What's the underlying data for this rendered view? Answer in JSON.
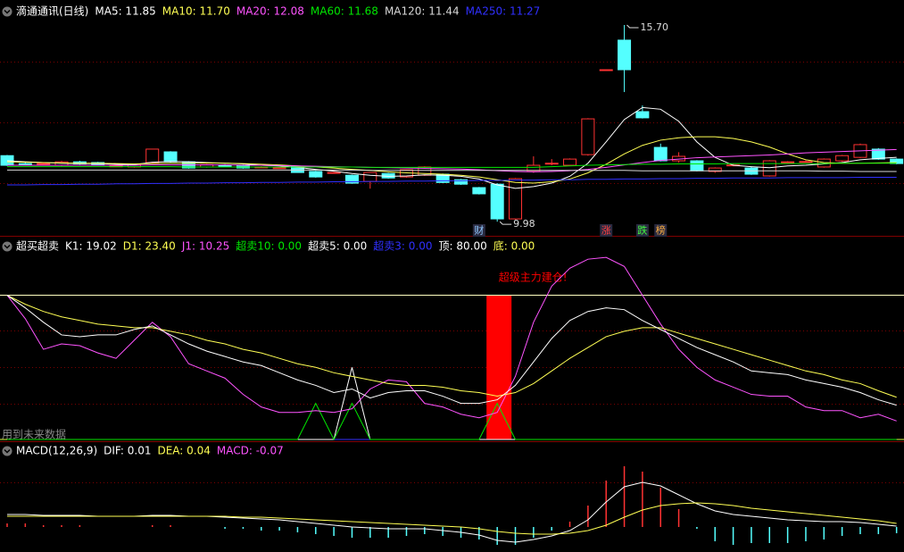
{
  "chart_data": [
    {
      "type": "candlestick",
      "title": "滴通通讯(日线)",
      "ylim": [
        9.62,
        16.22
      ],
      "up_color": "#ff3232",
      "down_color": "#54ffff",
      "open": [
        11.9,
        11.67,
        11.66,
        11.62,
        11.72,
        11.7,
        11.59,
        11.57,
        11.7,
        12.01,
        11.72,
        11.57,
        11.62,
        11.62,
        11.56,
        11.54,
        11.59,
        11.44,
        11.4,
        11.33,
        11.15,
        11.38,
        11.28,
        11.33,
        11.36,
        11.2,
        10.97,
        11.07,
        10.06,
        11.44,
        11.66,
        11.62,
        11.93,
        14.4,
        15.26,
        13.18,
        12.14,
        11.75,
        11.75,
        11.44,
        11.62,
        11.54,
        11.31,
        11.7,
        11.72,
        11.57,
        11.75,
        11.85,
        12.09,
        11.8
      ],
      "high": [
        11.92,
        11.7,
        11.69,
        11.75,
        11.75,
        11.72,
        11.62,
        11.66,
        12.1,
        12.03,
        11.74,
        11.66,
        11.65,
        11.64,
        11.59,
        11.57,
        11.6,
        11.46,
        11.43,
        11.35,
        11.42,
        11.4,
        11.5,
        11.59,
        11.38,
        11.22,
        10.99,
        11.1,
        11.25,
        11.88,
        11.8,
        11.82,
        12.99,
        14.4,
        15.7,
        13.36,
        12.25,
        12.0,
        11.77,
        11.56,
        11.66,
        11.58,
        11.77,
        11.74,
        11.76,
        11.82,
        11.92,
        12.25,
        12.12,
        11.82
      ],
      "low": [
        11.6,
        11.64,
        11.63,
        11.6,
        11.64,
        11.62,
        11.57,
        11.55,
        11.68,
        11.7,
        11.52,
        11.55,
        11.58,
        11.52,
        11.54,
        11.52,
        11.4,
        11.26,
        11.38,
        11.08,
        10.94,
        11.23,
        11.26,
        11.31,
        11.1,
        11.05,
        10.77,
        9.98,
        10.04,
        11.4,
        11.62,
        11.6,
        11.9,
        14.4,
        13.75,
        12.98,
        11.73,
        11.7,
        11.44,
        11.4,
        11.6,
        11.34,
        11.29,
        11.68,
        11.7,
        11.55,
        11.72,
        11.83,
        11.78,
        11.65
      ],
      "close": [
        11.62,
        11.66,
        11.67,
        11.72,
        11.66,
        11.63,
        11.6,
        11.64,
        12.09,
        11.72,
        11.54,
        11.64,
        11.61,
        11.54,
        11.57,
        11.55,
        11.41,
        11.28,
        11.41,
        11.1,
        11.41,
        11.25,
        11.49,
        11.57,
        11.12,
        11.07,
        10.79,
        10.06,
        11.23,
        11.62,
        11.68,
        11.8,
        12.97,
        14.4,
        14.4,
        13.0,
        11.75,
        11.88,
        11.46,
        11.54,
        11.63,
        11.36,
        11.75,
        11.72,
        11.73,
        11.8,
        11.9,
        12.22,
        11.8,
        11.67
      ],
      "series": [
        {
          "name": "MA5: 11.85",
          "color": "#ffffff",
          "values": [
            11.75,
            11.72,
            11.7,
            11.68,
            11.67,
            11.67,
            11.65,
            11.64,
            11.71,
            11.73,
            11.72,
            11.7,
            11.68,
            11.66,
            11.62,
            11.6,
            11.56,
            11.5,
            11.45,
            11.38,
            11.33,
            11.3,
            11.31,
            11.34,
            11.33,
            11.3,
            11.22,
            11.05,
            10.95,
            11.0,
            11.1,
            11.3,
            11.68,
            12.3,
            12.95,
            13.3,
            13.25,
            12.9,
            12.3,
            11.85,
            11.62,
            11.58,
            11.55,
            11.6,
            11.62,
            11.66,
            11.7,
            11.78,
            11.82,
            11.85
          ]
        },
        {
          "name": "MA10: 11.70",
          "color": "#ffff54",
          "values": [
            11.72,
            11.71,
            11.7,
            11.69,
            11.68,
            11.68,
            11.67,
            11.66,
            11.67,
            11.68,
            11.68,
            11.69,
            11.68,
            11.67,
            11.65,
            11.63,
            11.6,
            11.57,
            11.54,
            11.5,
            11.47,
            11.43,
            11.4,
            11.38,
            11.36,
            11.33,
            11.28,
            11.2,
            11.12,
            11.1,
            11.14,
            11.22,
            11.4,
            11.65,
            11.95,
            12.2,
            12.35,
            12.42,
            12.45,
            12.45,
            12.4,
            12.3,
            12.15,
            11.95,
            11.78,
            11.7,
            11.68,
            11.68,
            11.69,
            11.7
          ]
        },
        {
          "name": "MA20: 12.08",
          "color": "#ff54ff",
          "values": [
            11.62,
            11.62,
            11.62,
            11.62,
            11.62,
            11.62,
            11.62,
            11.62,
            11.63,
            11.63,
            11.63,
            11.63,
            11.63,
            11.62,
            11.62,
            11.61,
            11.6,
            11.59,
            11.58,
            11.57,
            11.56,
            11.55,
            11.54,
            11.53,
            11.52,
            11.51,
            11.49,
            11.46,
            11.44,
            11.43,
            11.44,
            11.46,
            11.5,
            11.56,
            11.63,
            11.7,
            11.76,
            11.8,
            11.84,
            11.86,
            11.88,
            11.9,
            11.92,
            11.95,
            11.98,
            12.0,
            12.02,
            12.04,
            12.06,
            12.08
          ]
        },
        {
          "name": "MA60: 11.68",
          "color": "#00e600",
          "values": [
            11.58,
            11.58,
            11.58,
            11.58,
            11.58,
            11.58,
            11.58,
            11.58,
            11.58,
            11.58,
            11.57,
            11.57,
            11.57,
            11.57,
            11.57,
            11.57,
            11.57,
            11.57,
            11.57,
            11.57,
            11.56,
            11.56,
            11.56,
            11.56,
            11.56,
            11.56,
            11.56,
            11.56,
            11.56,
            11.56,
            11.58,
            11.6,
            11.62,
            11.63,
            11.64,
            11.65,
            11.65,
            11.66,
            11.66,
            11.66,
            11.67,
            11.67,
            11.67,
            11.67,
            11.67,
            11.67,
            11.68,
            11.68,
            11.68,
            11.68
          ]
        },
        {
          "name": "MA120: 11.44",
          "color": "#d8d8d8",
          "values": [
            11.48,
            11.48,
            11.48,
            11.48,
            11.48,
            11.48,
            11.48,
            11.48,
            11.48,
            11.48,
            11.48,
            11.48,
            11.48,
            11.48,
            11.48,
            11.48,
            11.48,
            11.48,
            11.48,
            11.48,
            11.47,
            11.47,
            11.47,
            11.47,
            11.47,
            11.47,
            11.47,
            11.47,
            11.47,
            11.47,
            11.47,
            11.47,
            11.47,
            11.47,
            11.47,
            11.46,
            11.46,
            11.46,
            11.46,
            11.46,
            11.46,
            11.46,
            11.46,
            11.46,
            11.46,
            11.45,
            11.45,
            11.44,
            11.44,
            11.44
          ]
        },
        {
          "name": "MA250: 11.27",
          "color": "#3030ff",
          "values": [
            11.05,
            11.05,
            11.06,
            11.06,
            11.07,
            11.07,
            11.08,
            11.08,
            11.09,
            11.09,
            11.1,
            11.1,
            11.11,
            11.11,
            11.12,
            11.12,
            11.13,
            11.13,
            11.14,
            11.14,
            11.15,
            11.15,
            11.16,
            11.16,
            11.17,
            11.17,
            11.18,
            11.18,
            11.19,
            11.19,
            11.2,
            11.2,
            11.21,
            11.21,
            11.22,
            11.22,
            11.23,
            11.23,
            11.24,
            11.24,
            11.25,
            11.25,
            11.25,
            11.26,
            11.26,
            11.26,
            11.26,
            11.27,
            11.27,
            11.27
          ]
        }
      ],
      "annotations": [
        {
          "index": 34,
          "value": 15.7,
          "label": "15.70"
        },
        {
          "index": 27,
          "value": 9.98,
          "label": "9.98"
        }
      ],
      "markers": [
        {
          "index": 26,
          "text": "财",
          "color": "#8fc8ff"
        },
        {
          "index": 33,
          "text": "涨",
          "color": "#ff4040"
        },
        {
          "index": 35,
          "text": "跌",
          "color": "#40ff40"
        },
        {
          "index": 36,
          "text": "榜",
          "color": "#ffb040"
        }
      ]
    },
    {
      "type": "line",
      "title": "超买超卖",
      "ylim": [
        -1,
        110
      ],
      "series": [
        {
          "name": "K1: 19.02",
          "color": "#ffffff",
          "values": [
            80,
            73,
            65,
            58,
            57,
            58,
            58,
            61,
            63,
            58,
            53,
            49,
            46,
            43,
            41,
            37,
            33,
            30,
            26,
            28,
            23,
            26,
            27,
            27,
            24,
            20,
            20,
            22,
            30,
            43,
            56,
            66,
            71,
            73,
            72,
            66,
            61,
            56,
            51,
            47,
            43,
            38,
            37,
            36,
            33,
            31,
            29,
            26,
            22,
            19.02
          ]
        },
        {
          "name": "D1: 23.40",
          "color": "#ffff54",
          "values": [
            80,
            75,
            71,
            68,
            66,
            64,
            63,
            62,
            62,
            60,
            58,
            55,
            53,
            50,
            48,
            45,
            42,
            40,
            37,
            35,
            33,
            31,
            30,
            30,
            29,
            27,
            26,
            24,
            26,
            31,
            38,
            45,
            51,
            57,
            60,
            62,
            62,
            59,
            56,
            53,
            50,
            47,
            44,
            41,
            38,
            36,
            33,
            31,
            27,
            23.4
          ]
        },
        {
          "name": "J1: 10.25",
          "color": "#ff54ff",
          "values": [
            80,
            67,
            50,
            53,
            52,
            48,
            45,
            55,
            65,
            57,
            42,
            38,
            34,
            25,
            18,
            15,
            15,
            16,
            15,
            17,
            28,
            33,
            32,
            20,
            18,
            14,
            12,
            15,
            35,
            65,
            85,
            95,
            100,
            101,
            96,
            80,
            64,
            50,
            40,
            33,
            29,
            25,
            24,
            24,
            18,
            16,
            16,
            12,
            14,
            10.25
          ]
        },
        {
          "name": "超卖10: 0.00",
          "color": "#00e600",
          "values": [
            0,
            0,
            0,
            0,
            0,
            0,
            0,
            0,
            0,
            0,
            0,
            0,
            0,
            0,
            0,
            0,
            0,
            20,
            0,
            20,
            0,
            0,
            0,
            0,
            0,
            0,
            0,
            20,
            0,
            0,
            0,
            0,
            0,
            0,
            0,
            0,
            0,
            0,
            0,
            0,
            0,
            0,
            0,
            0,
            0,
            0,
            0,
            0,
            0,
            0
          ]
        },
        {
          "name": "超卖5: 0.00",
          "color": "#ffffff",
          "values": [
            0,
            0,
            0,
            0,
            0,
            0,
            0,
            0,
            0,
            0,
            0,
            0,
            0,
            0,
            0,
            0,
            0,
            0,
            0,
            40,
            0,
            0,
            0,
            0,
            0,
            0,
            0,
            0,
            0,
            0,
            0,
            0,
            0,
            0,
            0,
            0,
            0,
            0,
            0,
            0,
            0,
            0,
            0,
            0,
            0,
            0,
            0,
            0,
            0,
            0
          ]
        },
        {
          "name": "超卖3: 0.00",
          "color": "#3030ff",
          "values": [
            0,
            0,
            0,
            0,
            0,
            0,
            0,
            0,
            0,
            0,
            0,
            0,
            0,
            0,
            0,
            0,
            0,
            0,
            0,
            0,
            0,
            0,
            0,
            0,
            0,
            0,
            0,
            0,
            0,
            0,
            0,
            0,
            0,
            0,
            0,
            0,
            0,
            0,
            0,
            0,
            0,
            0,
            0,
            0,
            0,
            0,
            0,
            0,
            0,
            0
          ]
        }
      ],
      "hlines": [
        {
          "name": "顶: 80.00",
          "value": 80,
          "color": "#ffffc0"
        },
        {
          "name": "底: 0.00",
          "value": 0,
          "color": "#d8ff40"
        }
      ],
      "signal": {
        "index": 27,
        "value": 80,
        "color": "#ff0000",
        "label": "超级主力建仓!"
      },
      "note": "用到未来数据"
    },
    {
      "type": "macd",
      "title": "MACD(12,26,9)",
      "ylim": [
        -0.26,
        0.9
      ],
      "series": [
        {
          "name": "DIF: 0.01",
          "color": "#ffffff",
          "values": [
            0.14,
            0.14,
            0.13,
            0.13,
            0.13,
            0.12,
            0.12,
            0.12,
            0.13,
            0.13,
            0.12,
            0.12,
            0.11,
            0.1,
            0.09,
            0.08,
            0.06,
            0.04,
            0.02,
            0.0,
            -0.01,
            -0.02,
            -0.02,
            -0.02,
            -0.04,
            -0.06,
            -0.09,
            -0.15,
            -0.17,
            -0.14,
            -0.1,
            -0.04,
            0.08,
            0.28,
            0.45,
            0.5,
            0.46,
            0.36,
            0.26,
            0.18,
            0.14,
            0.12,
            0.1,
            0.08,
            0.07,
            0.06,
            0.06,
            0.05,
            0.03,
            0.01
          ]
        },
        {
          "name": "DEA: 0.04",
          "color": "#ffff54",
          "values": [
            0.12,
            0.12,
            0.12,
            0.12,
            0.12,
            0.12,
            0.12,
            0.12,
            0.12,
            0.12,
            0.12,
            0.12,
            0.12,
            0.11,
            0.11,
            0.1,
            0.09,
            0.08,
            0.07,
            0.06,
            0.05,
            0.04,
            0.03,
            0.02,
            0.01,
            0.0,
            -0.02,
            -0.05,
            -0.07,
            -0.08,
            -0.08,
            -0.07,
            -0.04,
            0.02,
            0.11,
            0.19,
            0.24,
            0.26,
            0.27,
            0.26,
            0.24,
            0.21,
            0.19,
            0.17,
            0.15,
            0.13,
            0.11,
            0.09,
            0.07,
            0.04
          ]
        }
      ],
      "bars": {
        "name": "MACD: -0.07",
        "color": "#ff54ff",
        "up_color": "#ff3232",
        "down_color": "#54ffff",
        "values": [
          0.04,
          0.04,
          0.02,
          0.02,
          0.02,
          0,
          0,
          0,
          0.02,
          0.02,
          0,
          0,
          -0.02,
          -0.02,
          -0.04,
          -0.04,
          -0.06,
          -0.08,
          -0.1,
          -0.12,
          -0.12,
          -0.12,
          -0.1,
          -0.08,
          -0.1,
          -0.12,
          -0.14,
          -0.2,
          -0.2,
          -0.12,
          -0.04,
          0.06,
          0.24,
          0.52,
          0.68,
          0.62,
          0.44,
          0.2,
          -0.02,
          -0.16,
          -0.2,
          -0.18,
          -0.18,
          -0.18,
          -0.16,
          -0.14,
          -0.1,
          -0.08,
          -0.08,
          -0.07
        ]
      }
    }
  ]
}
